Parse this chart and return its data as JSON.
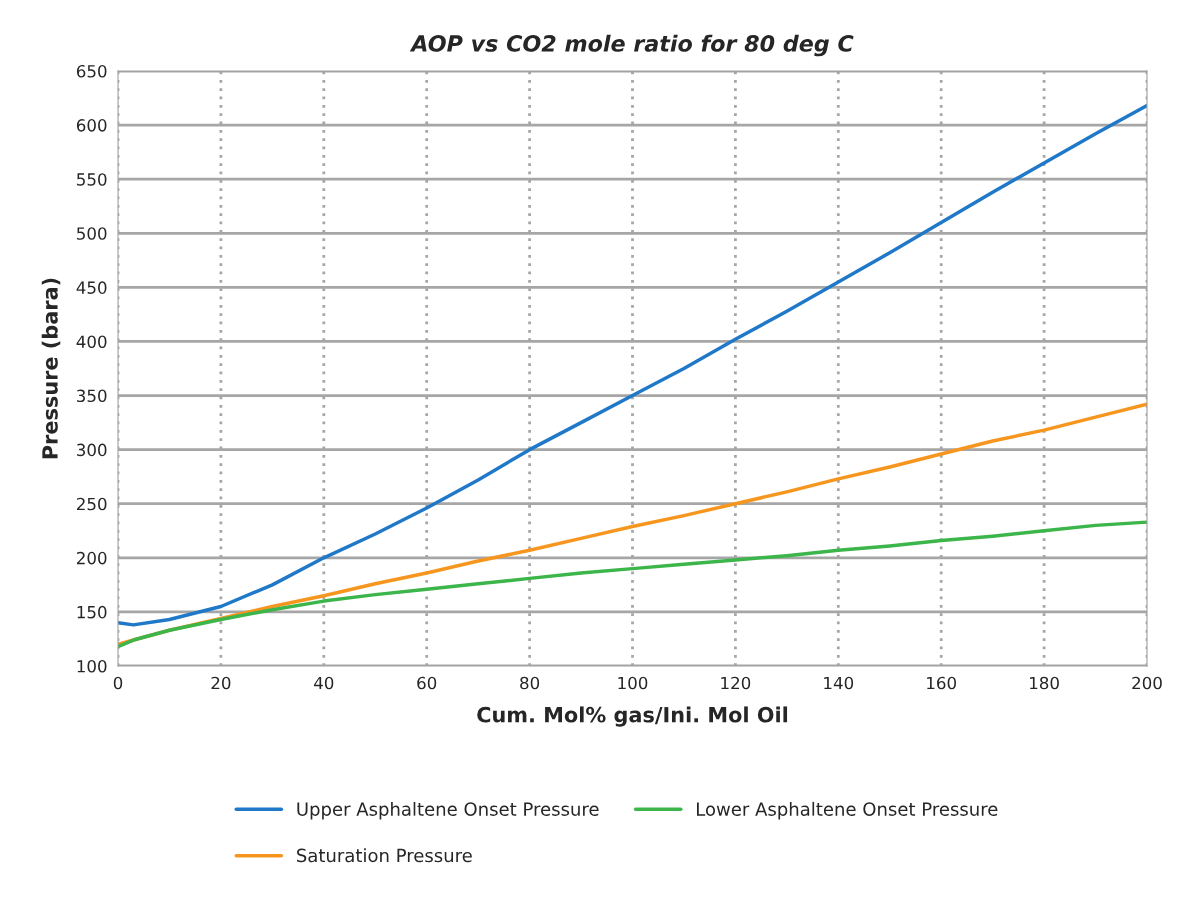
{
  "chart_data": {
    "type": "line",
    "title": "AOP vs CO2 mole ratio for 80 deg C",
    "xlabel": "Cum. Mol% gas/Ini. Mol Oil",
    "ylabel": "Pressure (bara)",
    "x": [
      0,
      3,
      10,
      20,
      30,
      40,
      50,
      60,
      70,
      80,
      90,
      100,
      110,
      120,
      130,
      140,
      150,
      160,
      170,
      180,
      190,
      200
    ],
    "series": [
      {
        "name": "Upper Asphaltene Onset Pressure",
        "color": "#1f78c8",
        "values": [
          140,
          138,
          143,
          155,
          175,
          200,
          222,
          246,
          272,
          300,
          325,
          350,
          375,
          402,
          428,
          455,
          482,
          510,
          538,
          565,
          592,
          618
        ]
      },
      {
        "name": "Saturation Pressure",
        "color": "#f7961e",
        "values": [
          120,
          124,
          133,
          144,
          155,
          165,
          176,
          186,
          197,
          207,
          218,
          229,
          239,
          250,
          261,
          273,
          284,
          296,
          308,
          318,
          330,
          342
        ]
      },
      {
        "name": "Lower Asphaltene Onset Pressure",
        "color": "#3cb54a",
        "values": [
          118,
          124,
          133,
          143,
          152,
          160,
          166,
          171,
          176,
          181,
          186,
          190,
          194,
          198,
          202,
          207,
          211,
          216,
          220,
          225,
          230,
          233
        ]
      }
    ],
    "xlim": [
      0,
      200
    ],
    "xticks": [
      0,
      20,
      40,
      60,
      80,
      100,
      120,
      140,
      160,
      180,
      200
    ],
    "ylim": [
      100,
      650
    ],
    "yticks": [
      100,
      150,
      200,
      250,
      300,
      350,
      400,
      450,
      500,
      550,
      600,
      650
    ],
    "grid": true,
    "legend": "bottom",
    "marker": "none",
    "line_style": "solid"
  }
}
